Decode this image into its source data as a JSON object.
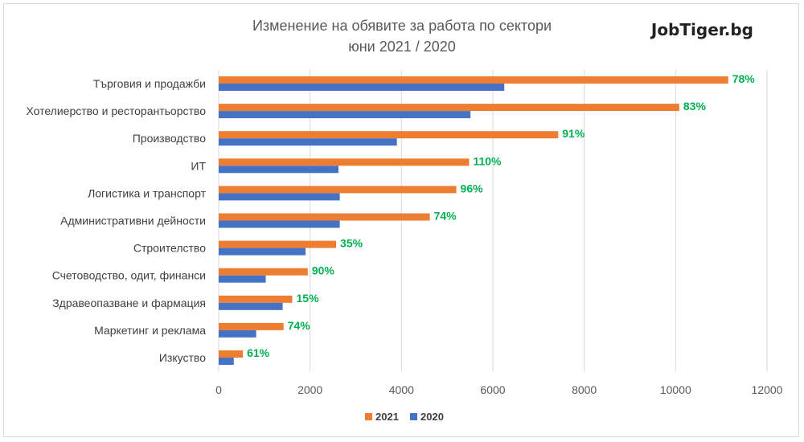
{
  "chart_data": {
    "type": "bar",
    "orientation": "horizontal",
    "title": "Изменение на обявите за работа по сектори",
    "subtitle": "юни 2021 / 2020",
    "brand": "JobTiger.bg",
    "categories": [
      "Търговия и продажби",
      "Хотелиерство и ресторантьорство",
      "Производство",
      "ИТ",
      "Логистика и транспорт",
      "Административни дейности",
      "Строителство",
      "Счетоводство, одит, финанси",
      "Здравеопазване и фармация",
      "Маркетинг и реклама",
      "Изкуство"
    ],
    "series": [
      {
        "name": "2021",
        "color": "#ed7d31",
        "values": [
          11150,
          10080,
          7430,
          5480,
          5200,
          4620,
          2570,
          1950,
          1610,
          1420,
          530
        ]
      },
      {
        "name": "2020",
        "color": "#4472c4",
        "values": [
          6250,
          5510,
          3900,
          2620,
          2650,
          2650,
          1900,
          1030,
          1400,
          820,
          330
        ]
      }
    ],
    "change_labels": [
      "78%",
      "83%",
      "91%",
      "110%",
      "96%",
      "74%",
      "35%",
      "90%",
      "15%",
      "74%",
      "61%"
    ],
    "xlim": [
      0,
      12000
    ],
    "xticks": [
      "0",
      "2000",
      "4000",
      "6000",
      "8000",
      "10000",
      "12000"
    ],
    "grid": "vertical",
    "legend": "bottom",
    "label_color": "#00b050"
  }
}
